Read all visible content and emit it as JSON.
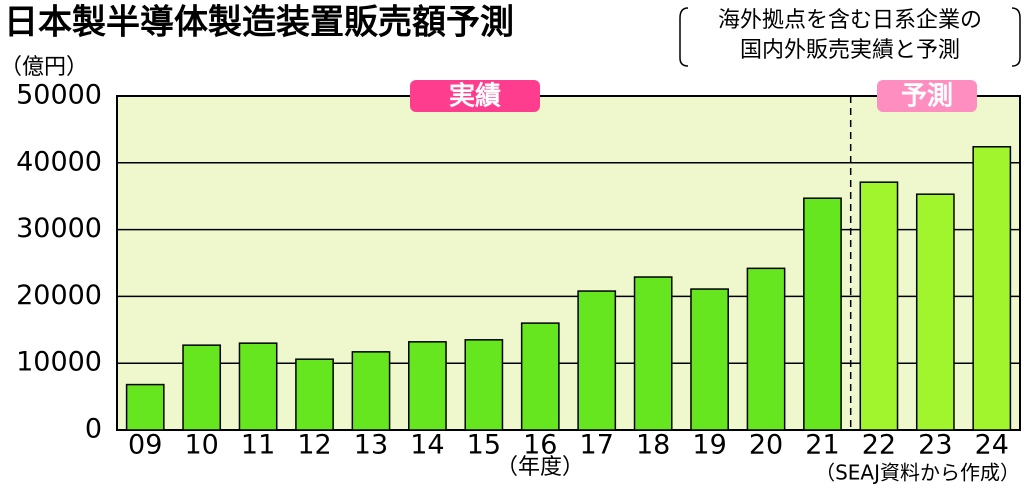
{
  "chart_data": {
    "type": "bar",
    "title": "日本製半導体製造装置販売額予測",
    "subtitle": [
      "海外拠点を含む日系企業の",
      "国内外販売実績と予測"
    ],
    "ylabel": "（億円）",
    "xlabel": "（年度）",
    "source": "（SEAJ資料から作成）",
    "annotations": [
      "実績",
      "予測"
    ],
    "categories": [
      "09",
      "10",
      "11",
      "12",
      "13",
      "14",
      "15",
      "16",
      "17",
      "18",
      "19",
      "20",
      "21",
      "22",
      "23",
      "24"
    ],
    "values": [
      6800,
      12700,
      13000,
      10600,
      11700,
      13200,
      13500,
      16000,
      20800,
      22900,
      21100,
      24200,
      34700,
      37100,
      35300,
      42400
    ],
    "colors": [
      "#66e61e",
      "#66e61e",
      "#66e61e",
      "#66e61e",
      "#66e61e",
      "#66e61e",
      "#66e61e",
      "#66e61e",
      "#66e61e",
      "#66e61e",
      "#66e61e",
      "#66e61e",
      "#66e61e",
      "#a0f52d",
      "#a0f52d",
      "#a0f52d"
    ],
    "ylim": [
      0,
      50000
    ],
    "yticks": [
      0,
      10000,
      20000,
      30000,
      40000,
      50000
    ],
    "grid": true
  }
}
